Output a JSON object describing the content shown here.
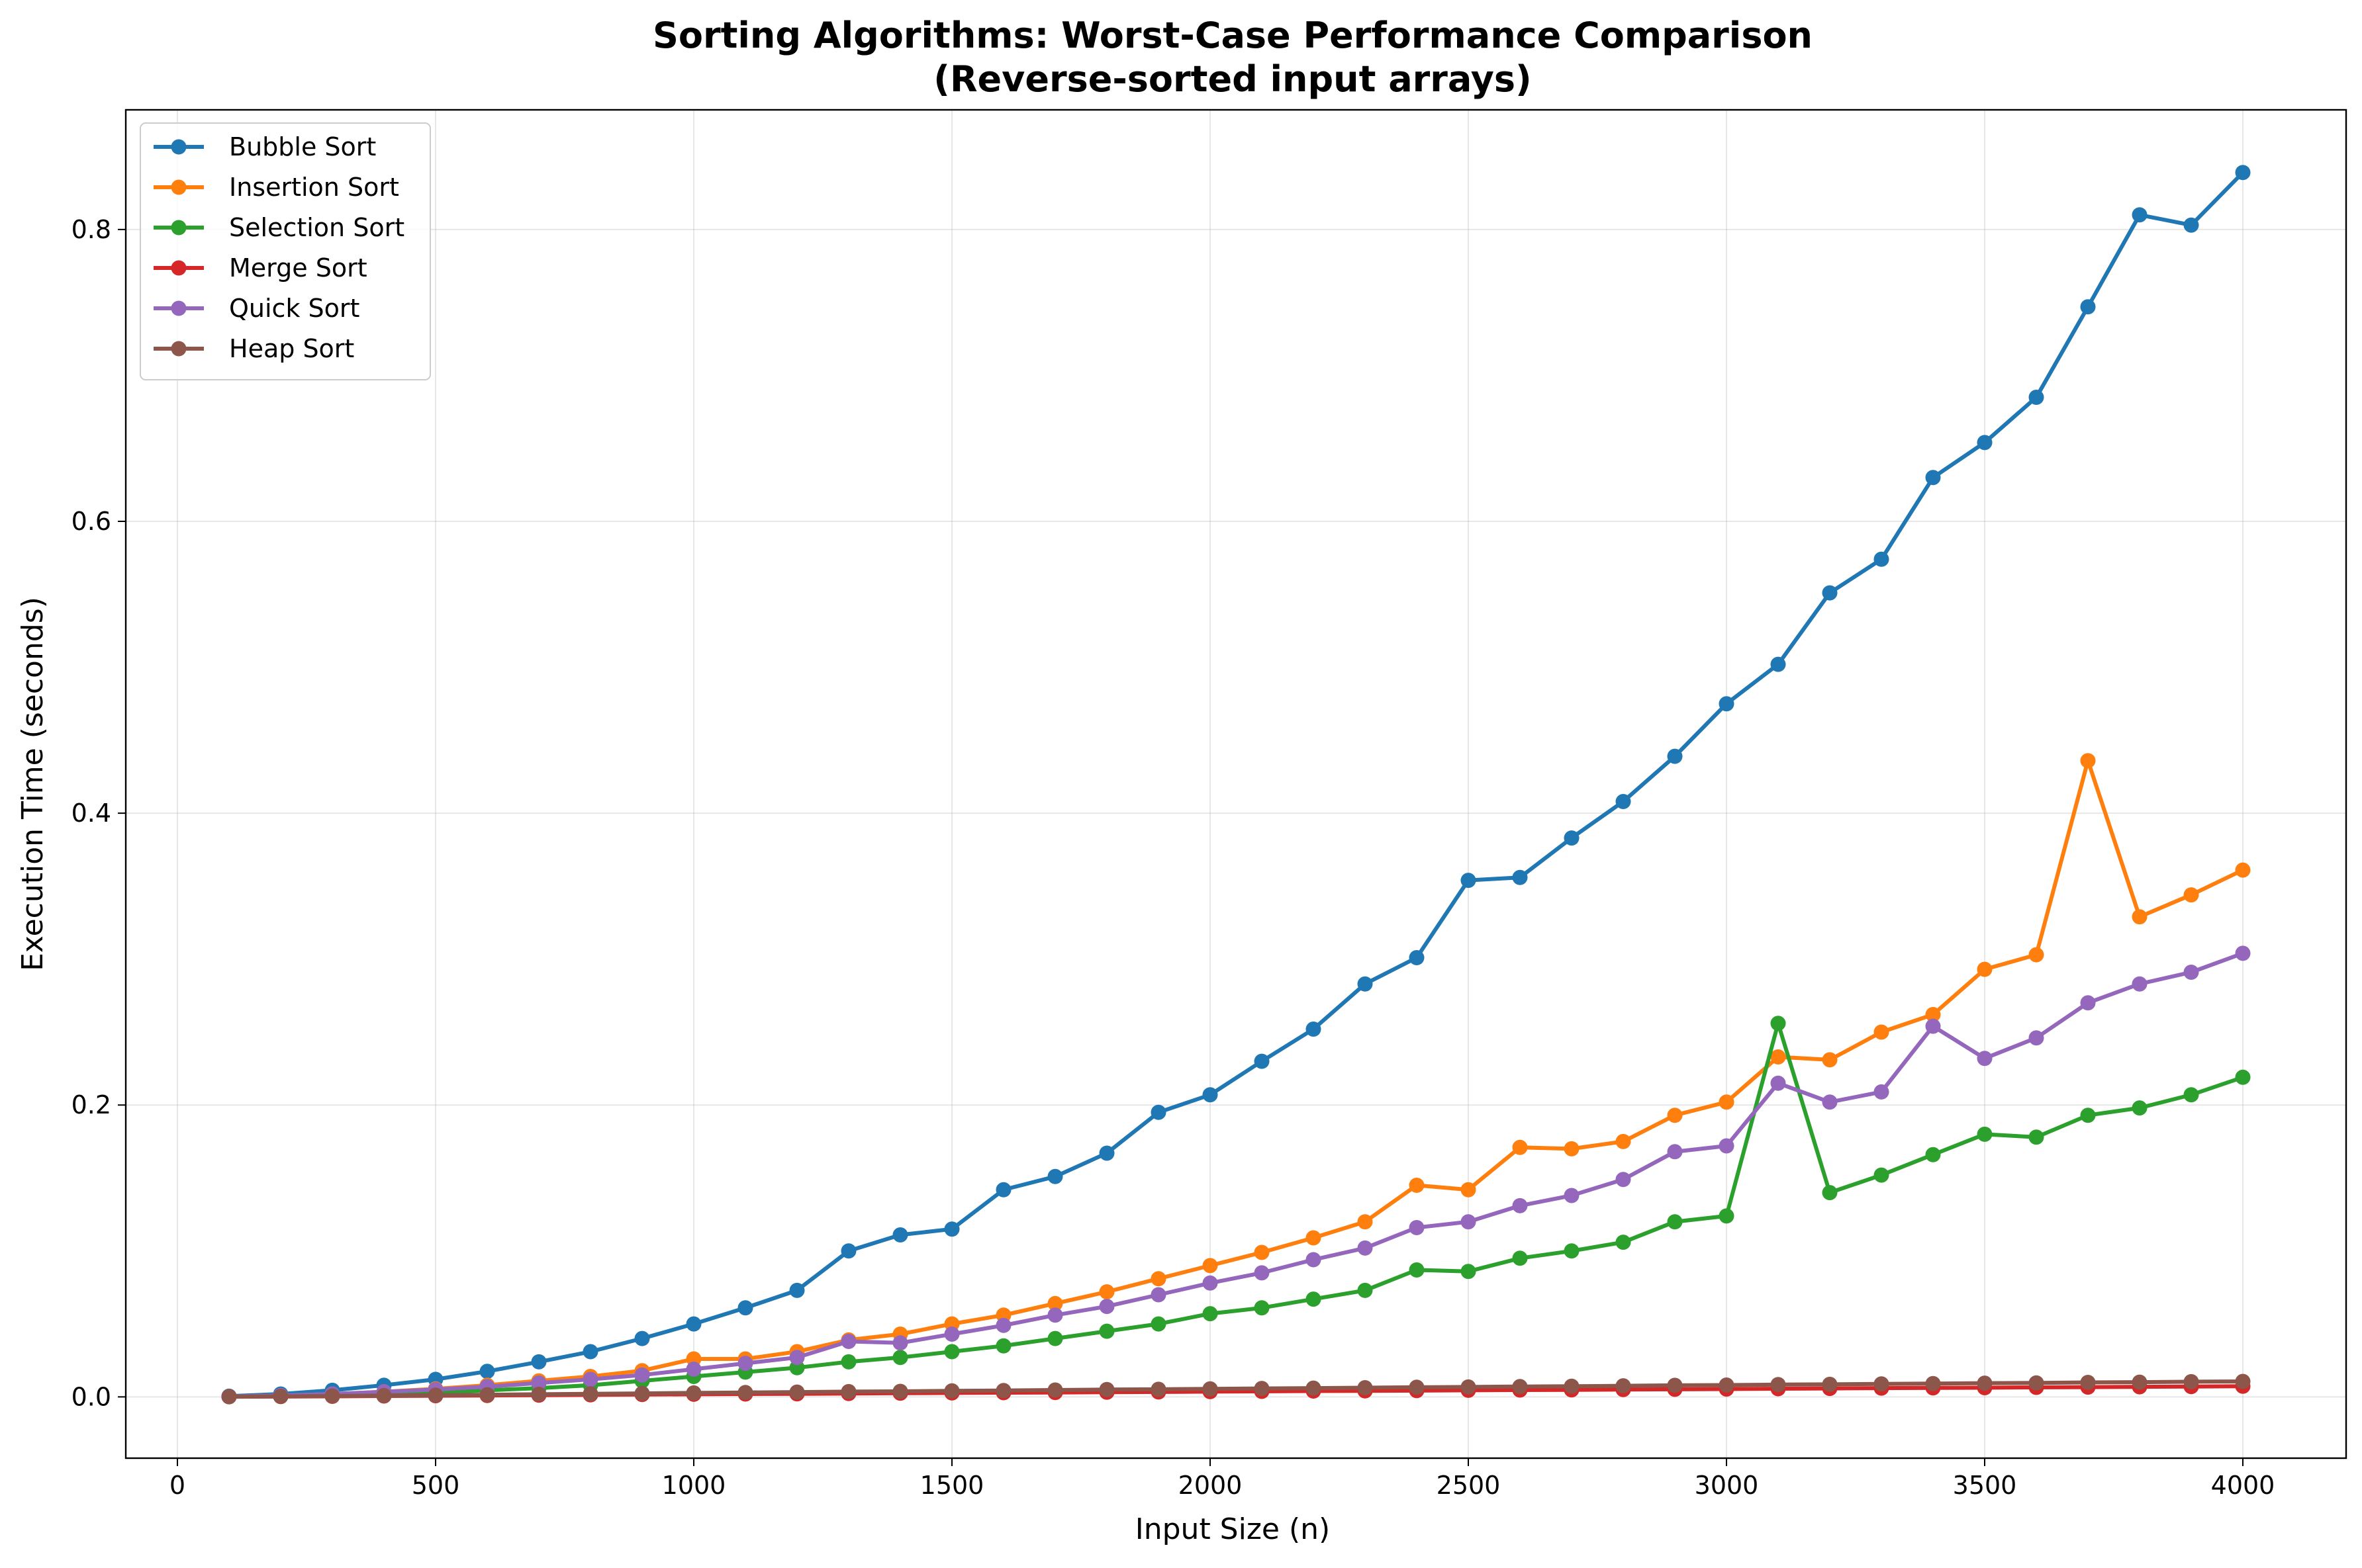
{
  "chart_data": {
    "type": "line",
    "title": "Sorting Algorithms: Worst-Case Performance Comparison",
    "subtitle": "(Reverse-sorted input arrays)",
    "xlabel": "Input Size (n)",
    "ylabel": "Execution Time (seconds)",
    "xlim": [
      -100,
      4200
    ],
    "ylim": [
      -0.042,
      0.882
    ],
    "xticks": [
      0,
      500,
      1000,
      1500,
      2000,
      2500,
      3000,
      3500,
      4000
    ],
    "xtick_labels": [
      "0",
      "500",
      "1000",
      "1500",
      "2000",
      "2500",
      "3000",
      "3500",
      "4000"
    ],
    "yticks": [
      0.0,
      0.2,
      0.4,
      0.6,
      0.8
    ],
    "ytick_labels": [
      "0.0",
      "0.2",
      "0.4",
      "0.6",
      "0.8"
    ],
    "grid": true,
    "legend_position": "top-left",
    "marker": "circle",
    "x": [
      100,
      200,
      300,
      400,
      500,
      600,
      700,
      800,
      900,
      1000,
      1100,
      1200,
      1300,
      1400,
      1500,
      1600,
      1700,
      1800,
      1900,
      2000,
      2100,
      2200,
      2300,
      2400,
      2500,
      2600,
      2700,
      2800,
      2900,
      3000,
      3100,
      3200,
      3300,
      3400,
      3500,
      3600,
      3700,
      3800,
      3900,
      4000
    ],
    "series": [
      {
        "name": "Bubble Sort",
        "color": "#1f77b4",
        "values": [
          0.0005,
          0.002,
          0.0045,
          0.008,
          0.012,
          0.0175,
          0.024,
          0.031,
          0.04,
          0.05,
          0.061,
          0.073,
          0.1,
          0.111,
          0.115,
          0.142,
          0.151,
          0.167,
          0.195,
          0.207,
          0.23,
          0.252,
          0.283,
          0.301,
          0.354,
          0.356,
          0.383,
          0.408,
          0.439,
          0.475,
          0.502,
          0.551,
          0.574,
          0.63,
          0.654,
          0.685,
          0.747,
          0.81,
          0.803,
          0.839
        ]
      },
      {
        "name": "Insertion Sort",
        "color": "#ff7f0e",
        "values": [
          0.0002,
          0.0008,
          0.002,
          0.0035,
          0.0055,
          0.008,
          0.011,
          0.014,
          0.018,
          0.026,
          0.026,
          0.031,
          0.039,
          0.043,
          0.05,
          0.056,
          0.064,
          0.072,
          0.081,
          0.09,
          0.099,
          0.109,
          0.12,
          0.145,
          0.142,
          0.171,
          0.17,
          0.175,
          0.193,
          0.202,
          0.233,
          0.231,
          0.25,
          0.262,
          0.293,
          0.303,
          0.436,
          0.329,
          0.344,
          0.361
        ]
      },
      {
        "name": "Selection Sort",
        "color": "#2ca02c",
        "values": [
          0.0001,
          0.0005,
          0.001,
          0.002,
          0.003,
          0.0045,
          0.006,
          0.008,
          0.011,
          0.014,
          0.017,
          0.02,
          0.024,
          0.027,
          0.031,
          0.035,
          0.04,
          0.045,
          0.05,
          0.057,
          0.061,
          0.067,
          0.073,
          0.087,
          0.086,
          0.095,
          0.1,
          0.106,
          0.12,
          0.124,
          0.256,
          0.14,
          0.152,
          0.166,
          0.18,
          0.178,
          0.193,
          0.198,
          0.207,
          0.219
        ]
      },
      {
        "name": "Merge Sort",
        "color": "#d62728",
        "values": [
          0.0001,
          0.0002,
          0.0004,
          0.0006,
          0.0008,
          0.001,
          0.0012,
          0.0014,
          0.0016,
          0.0018,
          0.002,
          0.0021,
          0.0023,
          0.0025,
          0.0027,
          0.0029,
          0.003,
          0.0032,
          0.0034,
          0.0036,
          0.0038,
          0.004,
          0.0041,
          0.0043,
          0.0045,
          0.0047,
          0.0048,
          0.005,
          0.0052,
          0.0054,
          0.0056,
          0.0058,
          0.006,
          0.0062,
          0.0063,
          0.0065,
          0.0067,
          0.0069,
          0.0071,
          0.0073
        ]
      },
      {
        "name": "Quick Sort",
        "color": "#9467bd",
        "values": [
          0.0003,
          0.001,
          0.002,
          0.0035,
          0.005,
          0.007,
          0.0095,
          0.012,
          0.015,
          0.019,
          0.023,
          0.027,
          0.038,
          0.037,
          0.043,
          0.049,
          0.056,
          0.062,
          0.07,
          0.078,
          0.085,
          0.094,
          0.102,
          0.116,
          0.12,
          0.131,
          0.138,
          0.149,
          0.168,
          0.172,
          0.215,
          0.202,
          0.209,
          0.254,
          0.232,
          0.246,
          0.27,
          0.283,
          0.291,
          0.304
        ]
      },
      {
        "name": "Heap Sort",
        "color": "#8c564b",
        "values": [
          0.0002,
          0.0004,
          0.0006,
          0.0009,
          0.0012,
          0.0015,
          0.0018,
          0.0021,
          0.0024,
          0.0027,
          0.003,
          0.0033,
          0.0036,
          0.0038,
          0.0041,
          0.0044,
          0.0047,
          0.005,
          0.0052,
          0.0055,
          0.0058,
          0.006,
          0.0063,
          0.0066,
          0.0068,
          0.0071,
          0.0073,
          0.0076,
          0.0079,
          0.0081,
          0.0084,
          0.0086,
          0.0089,
          0.0091,
          0.0094,
          0.0096,
          0.0099,
          0.0101,
          0.0104,
          0.0106
        ]
      }
    ]
  }
}
